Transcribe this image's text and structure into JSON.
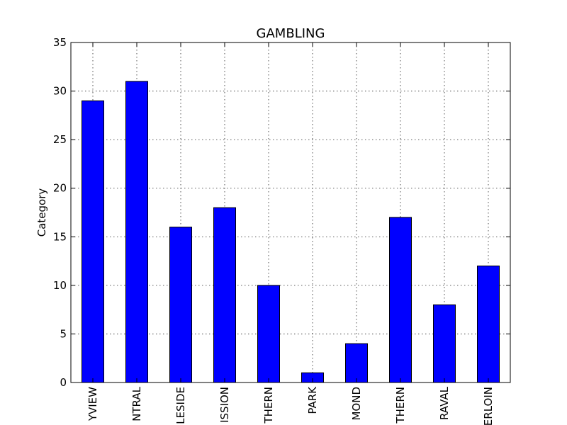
{
  "chart_data": {
    "type": "bar",
    "title": "GAMBLING",
    "ylabel": "Category",
    "xlabel": "",
    "categories": [
      "YVIEW",
      "NTRAL",
      "LESIDE",
      "ISSION",
      "THERN",
      "PARK",
      "MOND",
      "THERN",
      "RAVAL",
      "ERLOIN"
    ],
    "values": [
      29,
      31,
      16,
      18,
      10,
      1,
      4,
      17,
      8,
      12
    ],
    "ylim": [
      0,
      35
    ],
    "yticks": [
      0,
      5,
      10,
      15,
      20,
      25,
      30,
      35
    ],
    "grid": true,
    "bar_color": "#0000ff",
    "edge_color": "#000000"
  }
}
